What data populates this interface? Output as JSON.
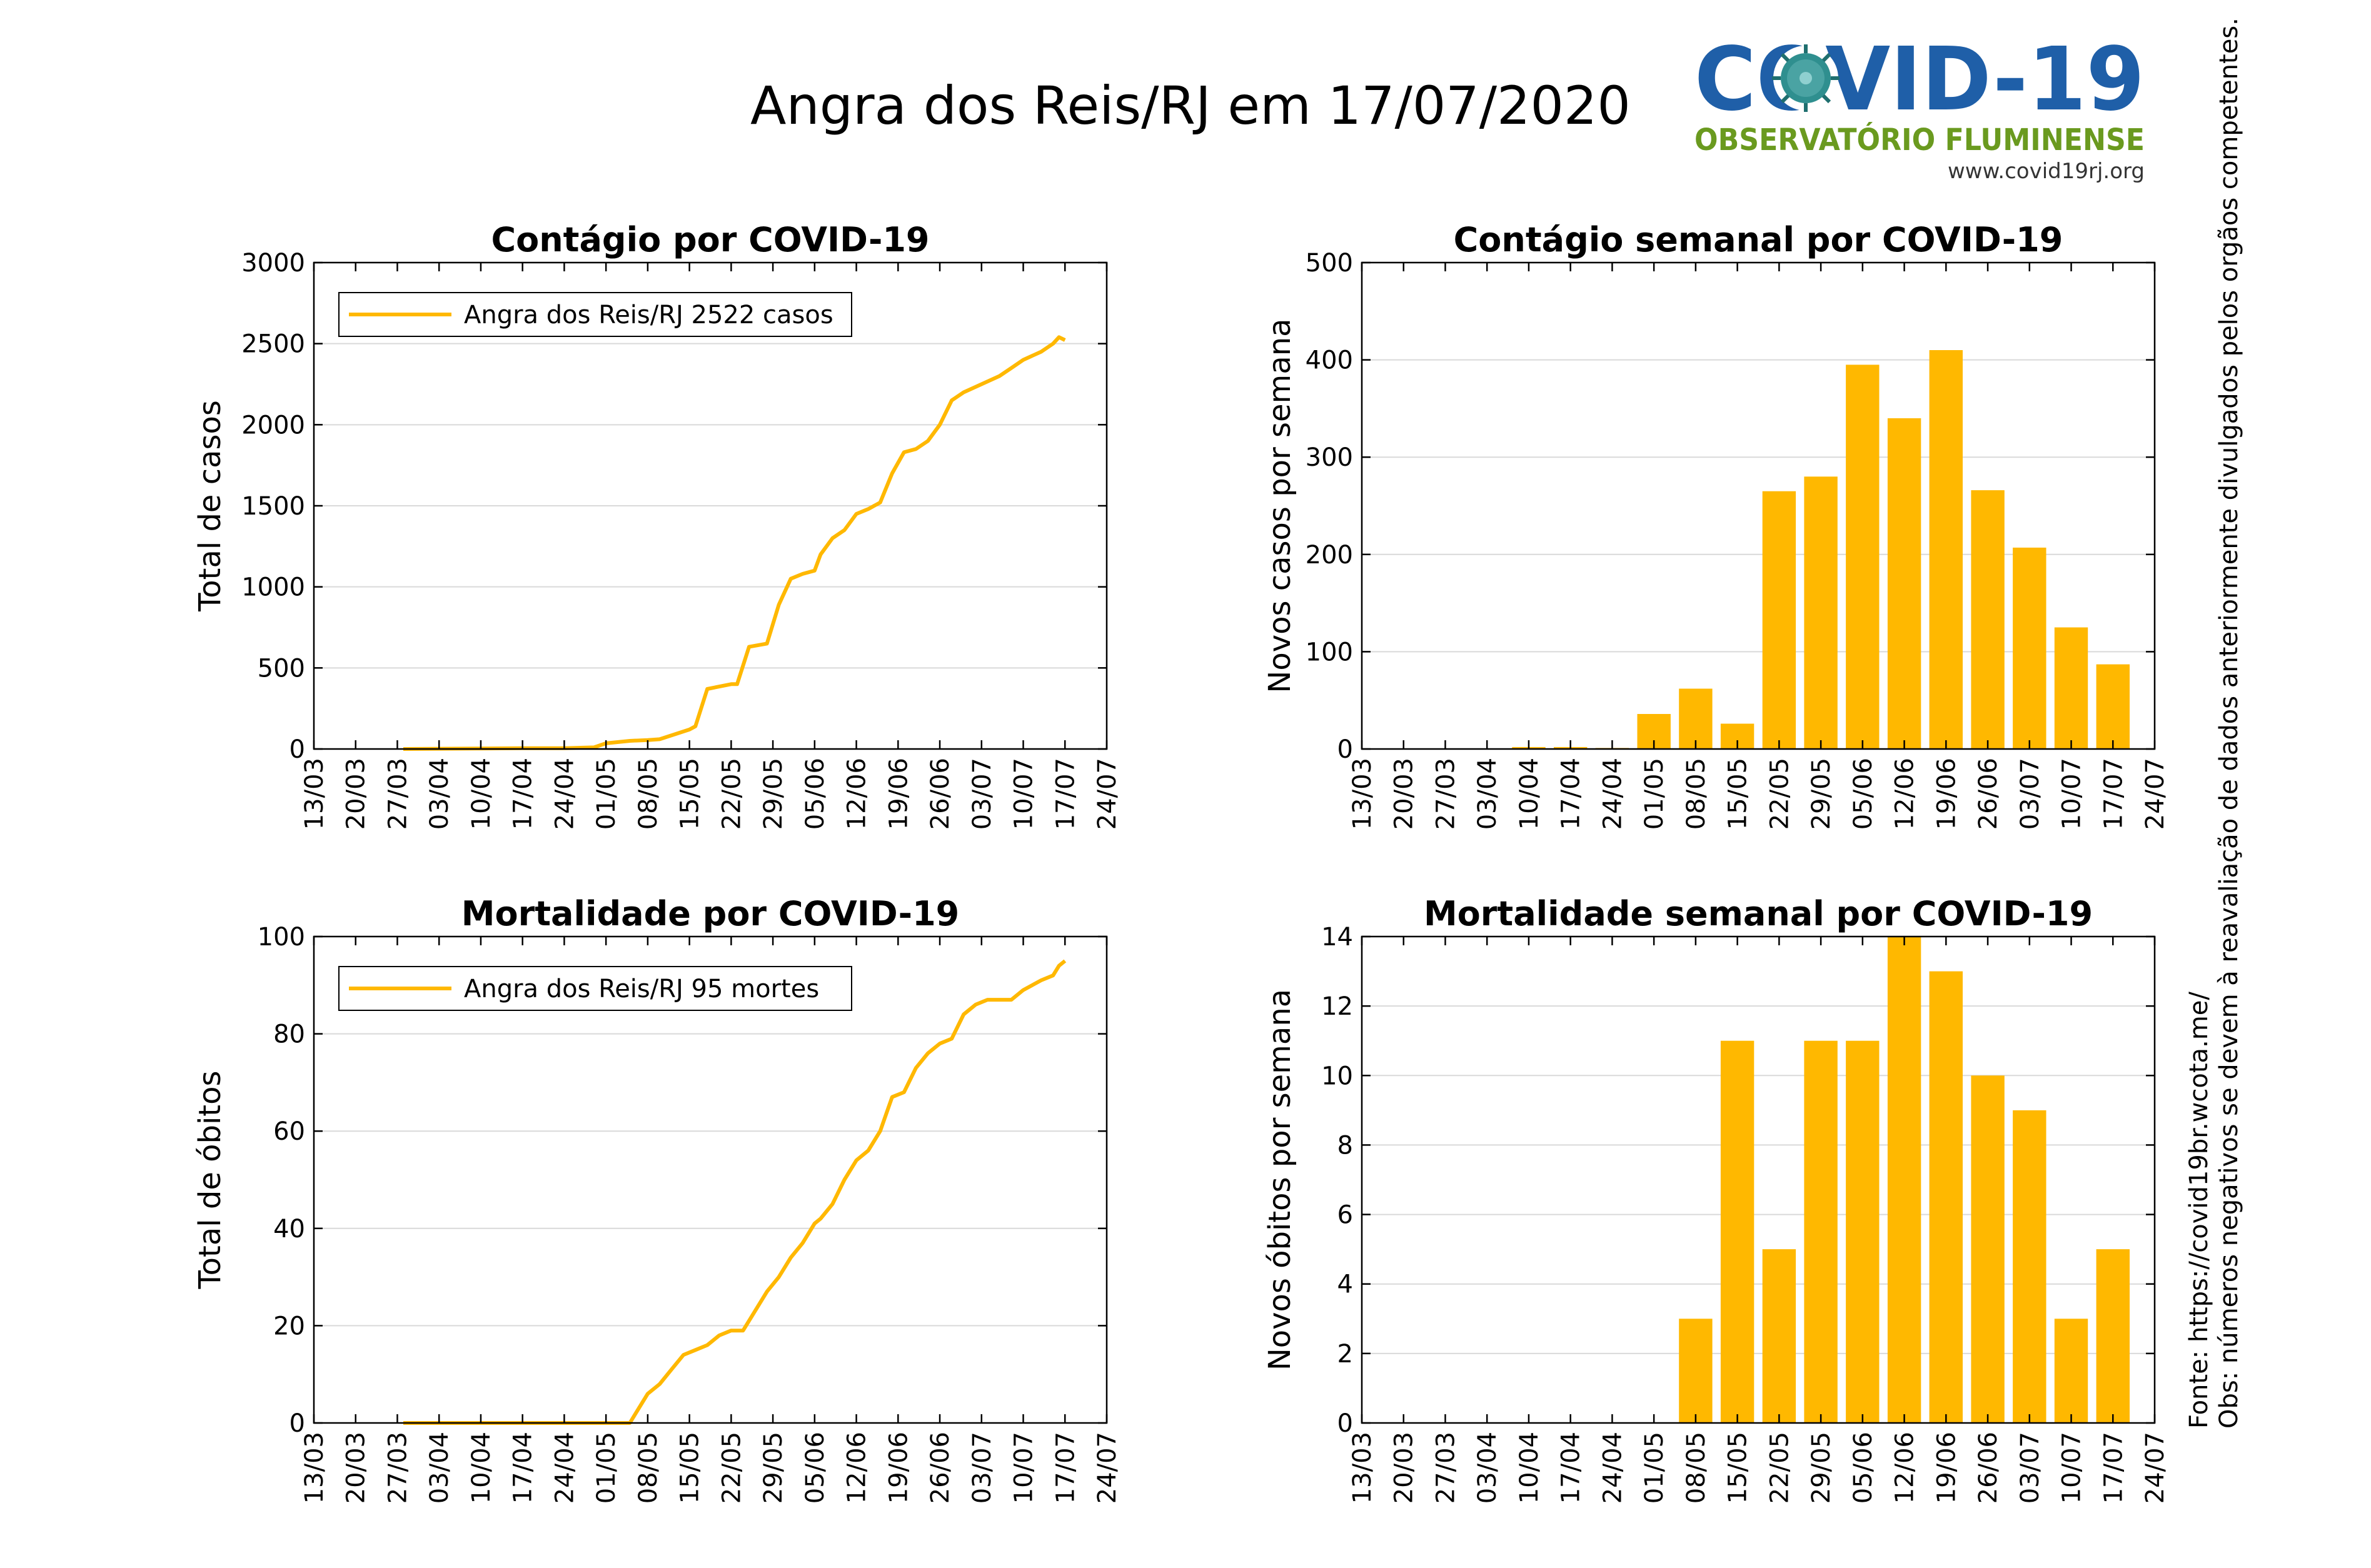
{
  "page": {
    "title": "Angra dos Reis/RJ em 17/07/2020",
    "logo": {
      "text_main": "COVID-19",
      "text_sub": "OBSERVATÓRIO FLUMINENSE",
      "url": "www.covid19rj.org",
      "colors": {
        "blue": "#1f5fa8",
        "green": "#6a9a1f",
        "virus": "#2f8f8f"
      }
    },
    "side_note": {
      "line1": "Fonte: https://covid19br.wcota.me/",
      "line2": "Obs: números negativos se devem à reavaliação de dados anteriormente divulgados pelos orgãos competentes."
    },
    "accent_color": "#ffb800"
  },
  "chart_data": [
    {
      "id": "cases-cumulative",
      "type": "line",
      "title": "Contágio por COVID-19",
      "ylabel": "Total de casos",
      "xlabel": "",
      "legend": "Angra dos Reis/RJ  2522 casos",
      "legend_position": "top-left",
      "grid": true,
      "ylim": [
        0,
        3000
      ],
      "yticks": [
        0,
        500,
        1000,
        1500,
        2000,
        2500,
        3000
      ],
      "xticks": [
        "13/03",
        "20/03",
        "27/03",
        "03/04",
        "10/04",
        "17/04",
        "24/04",
        "01/05",
        "08/05",
        "15/05",
        "22/05",
        "29/05",
        "05/06",
        "12/06",
        "19/06",
        "26/06",
        "03/07",
        "10/07",
        "17/07",
        "24/07"
      ],
      "x_start": "13/03",
      "series": [
        {
          "name": "Angra dos Reis/RJ  2522 casos",
          "x": [
            "28/03",
            "05/04",
            "10/04",
            "17/04",
            "24/04",
            "29/04",
            "01/05",
            "05/05",
            "08/05",
            "10/05",
            "15/05",
            "16/05",
            "18/05",
            "22/05",
            "23/05",
            "25/05",
            "28/05",
            "30/05",
            "01/06",
            "03/06",
            "05/06",
            "06/06",
            "08/06",
            "10/06",
            "12/06",
            "14/06",
            "16/06",
            "18/06",
            "20/06",
            "22/06",
            "24/06",
            "26/06",
            "28/06",
            "30/06",
            "03/07",
            "06/07",
            "08/07",
            "10/07",
            "13/07",
            "15/07",
            "16/07",
            "17/07"
          ],
          "y": [
            0,
            2,
            3,
            5,
            5,
            10,
            35,
            50,
            55,
            60,
            120,
            140,
            370,
            400,
            400,
            630,
            650,
            890,
            1050,
            1080,
            1100,
            1200,
            1300,
            1350,
            1450,
            1480,
            1520,
            1700,
            1830,
            1850,
            1900,
            2000,
            2150,
            2200,
            2250,
            2300,
            2350,
            2400,
            2450,
            2500,
            2540,
            2522
          ]
        }
      ]
    },
    {
      "id": "cases-weekly",
      "type": "bar",
      "title": "Contágio semanal por COVID-19",
      "ylabel": "Novos casos por semana",
      "xlabel": "",
      "grid": true,
      "ylim": [
        0,
        500
      ],
      "yticks": [
        0,
        100,
        200,
        300,
        400,
        500
      ],
      "xticks": [
        "13/03",
        "20/03",
        "27/03",
        "03/04",
        "10/04",
        "17/04",
        "24/04",
        "01/05",
        "08/05",
        "15/05",
        "22/05",
        "29/05",
        "05/06",
        "12/06",
        "19/06",
        "26/06",
        "03/07",
        "10/07",
        "17/07",
        "24/07"
      ],
      "categories": [
        "13/03",
        "20/03",
        "27/03",
        "03/04",
        "10/04",
        "17/04",
        "24/04",
        "01/05",
        "08/05",
        "15/05",
        "22/05",
        "29/05",
        "05/06",
        "12/06",
        "19/06",
        "26/06",
        "03/07",
        "10/07",
        "17/07"
      ],
      "values": [
        0,
        0,
        0,
        0,
        2,
        2,
        1,
        36,
        62,
        26,
        265,
        280,
        395,
        340,
        410,
        266,
        207,
        125,
        87
      ]
    },
    {
      "id": "deaths-cumulative",
      "type": "line",
      "title": "Mortalidade por COVID-19",
      "ylabel": "Total de óbitos",
      "xlabel": "",
      "legend": "Angra dos Reis/RJ  95 mortes",
      "legend_position": "top-left",
      "grid": true,
      "ylim": [
        0,
        100
      ],
      "yticks": [
        0,
        20,
        40,
        60,
        80,
        100
      ],
      "xticks": [
        "13/03",
        "20/03",
        "27/03",
        "03/04",
        "10/04",
        "17/04",
        "24/04",
        "01/05",
        "08/05",
        "15/05",
        "22/05",
        "29/05",
        "05/06",
        "12/06",
        "19/06",
        "26/06",
        "03/07",
        "10/07",
        "17/07",
        "24/07"
      ],
      "x_start": "13/03",
      "series": [
        {
          "name": "Angra dos Reis/RJ  95 mortes",
          "x": [
            "28/03",
            "06/04",
            "15/04",
            "24/04",
            "01/05",
            "05/05",
            "06/05",
            "08/05",
            "10/05",
            "12/05",
            "14/05",
            "16/05",
            "18/05",
            "20/05",
            "22/05",
            "24/05",
            "26/05",
            "28/05",
            "30/05",
            "01/06",
            "03/06",
            "05/06",
            "06/06",
            "08/06",
            "10/06",
            "12/06",
            "14/06",
            "16/06",
            "18/06",
            "20/06",
            "22/06",
            "24/06",
            "26/06",
            "28/06",
            "30/06",
            "02/07",
            "04/07",
            "06/07",
            "08/07",
            "10/07",
            "13/07",
            "15/07",
            "16/07",
            "17/07"
          ],
          "y": [
            0,
            0,
            0,
            0,
            0,
            0,
            2,
            6,
            8,
            11,
            14,
            15,
            16,
            18,
            19,
            19,
            23,
            27,
            30,
            34,
            37,
            41,
            42,
            45,
            50,
            54,
            56,
            60,
            67,
            68,
            73,
            76,
            78,
            79,
            84,
            86,
            87,
            87,
            87,
            89,
            91,
            92,
            94,
            95
          ]
        }
      ]
    },
    {
      "id": "deaths-weekly",
      "type": "bar",
      "title": "Mortalidade semanal por COVID-19",
      "ylabel": "Novos óbitos por semana",
      "xlabel": "",
      "grid": true,
      "ylim": [
        0,
        14
      ],
      "yticks": [
        0,
        2,
        4,
        6,
        8,
        10,
        12,
        14
      ],
      "xticks": [
        "13/03",
        "20/03",
        "27/03",
        "03/04",
        "10/04",
        "17/04",
        "24/04",
        "01/05",
        "08/05",
        "15/05",
        "22/05",
        "29/05",
        "05/06",
        "12/06",
        "19/06",
        "26/06",
        "03/07",
        "10/07",
        "17/07",
        "24/07"
      ],
      "categories": [
        "13/03",
        "20/03",
        "27/03",
        "03/04",
        "10/04",
        "17/04",
        "24/04",
        "01/05",
        "08/05",
        "15/05",
        "22/05",
        "29/05",
        "05/06",
        "12/06",
        "19/06",
        "26/06",
        "03/07",
        "10/07",
        "17/07"
      ],
      "values": [
        0,
        0,
        0,
        0,
        0,
        0,
        0,
        0,
        3,
        11,
        5,
        11,
        11,
        14,
        13,
        10,
        9,
        3,
        5
      ]
    }
  ]
}
